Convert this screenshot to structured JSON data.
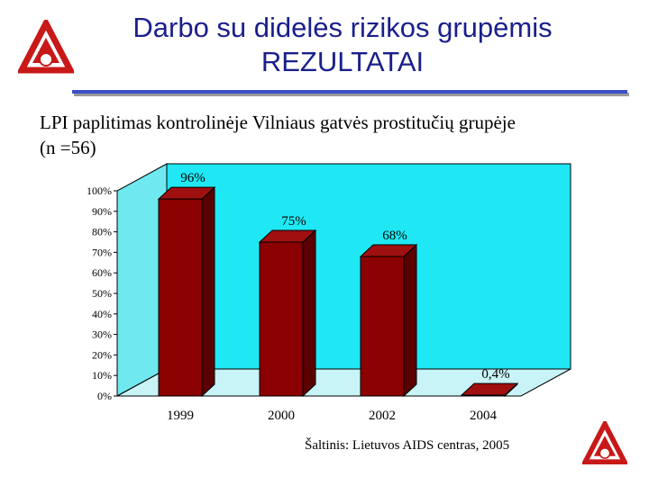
{
  "slide": {
    "title_line1": "Darbo su didelės rizikos grupėmis",
    "title_line2": "REZULTATAI",
    "subtitle_line1": "LPI paplitimas kontrolinėje Vilniaus gatvės prostitučių grupėje",
    "subtitle_line2": "(n =56)",
    "source": "Šaltinis: Lietuvos AIDS centras, 2005"
  },
  "colors": {
    "title": "#1a1f8c",
    "rule": "#3b50c8",
    "bar_front": "#8b0000",
    "bar_top": "#a01010",
    "bar_side": "#5a0000",
    "back_wall": "#1fe8f4",
    "side_wall": "#6fe8f0",
    "floor": "#c8f4f8",
    "logo_red": "#c81818"
  },
  "chart_data": {
    "type": "bar",
    "categories": [
      "1999",
      "2000",
      "2002",
      "2004"
    ],
    "values": [
      96,
      75,
      68,
      0.4
    ],
    "value_labels": [
      "96%",
      "75%",
      "68%",
      "0,4%"
    ],
    "ylim": [
      0,
      100
    ],
    "yticks": [
      0,
      10,
      20,
      30,
      40,
      50,
      60,
      70,
      80,
      90,
      100
    ],
    "ytick_labels": [
      "0%",
      "10%",
      "20%",
      "30%",
      "40%",
      "50%",
      "60%",
      "70%",
      "80%",
      "90%",
      "100%"
    ],
    "title": "",
    "xlabel": "",
    "ylabel": "",
    "grid": false,
    "style": "3d"
  }
}
